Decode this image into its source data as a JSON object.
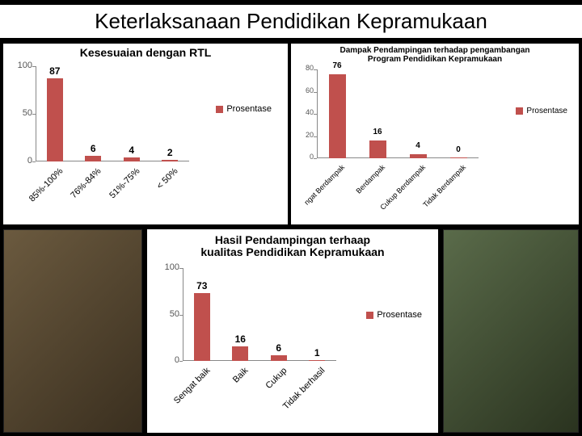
{
  "title": "Keterlaksanaan Pendidikan Kepramukaan",
  "bar_color": "#c0504d",
  "legend_label": "Prosentase",
  "chart1": {
    "title": "Kesesuaian dengan RTL",
    "ylim": [
      0,
      100
    ],
    "ytick_step": 50,
    "categories": [
      "85%-100%",
      "76%-84%",
      "51%-75%",
      "< 50%"
    ],
    "values": [
      87,
      6,
      4,
      2
    ]
  },
  "chart2": {
    "title_line1": "Dampak Pendampingan terhadap pengambangan",
    "title_line2": "Program Pendidikan Kepramukaan",
    "ylim": [
      0,
      80
    ],
    "ytick_step": 20,
    "categories": [
      "ngat Berdampak",
      "Berdampak",
      "Cukup Berdampak",
      "Tidak Berdampak"
    ],
    "values": [
      76,
      16,
      4,
      0
    ]
  },
  "chart3": {
    "title_line1": "Hasil Pendampingan terhaap",
    "title_line2": "kualitas Pendidikan Kepramukaan",
    "ylim": [
      0,
      100
    ],
    "ytick_step": 50,
    "categories": [
      "Sengat baik",
      "Baik",
      "Cukup",
      "Tidak berhasil"
    ],
    "values": [
      73,
      16,
      6,
      1
    ]
  }
}
